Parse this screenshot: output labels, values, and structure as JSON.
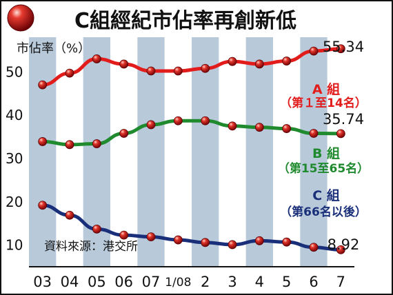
{
  "chart_data": {
    "type": "line",
    "title": "C組經紀市佔率再創新低",
    "ylabel": "市佔率（%）",
    "xlabel": "",
    "categories": [
      "03",
      "04",
      "05",
      "06",
      "07",
      "1/08",
      "2",
      "3",
      "4",
      "5",
      "6",
      "7"
    ],
    "ylim": [
      5,
      58
    ],
    "yticks": [
      10,
      20,
      30,
      40,
      50
    ],
    "grid": false,
    "series": [
      {
        "name": "A 組",
        "range_label": "（第１至14名）",
        "color": "#e21b1b",
        "values": [
          47.0,
          49.7,
          53.0,
          51.8,
          50.2,
          50.2,
          50.8,
          52.4,
          51.8,
          52.5,
          54.8,
          55.34
        ],
        "end_label": "55.34"
      },
      {
        "name": "B 組",
        "range_label": "（第15至65名）",
        "color": "#1f8a2e",
        "values": [
          33.9,
          33.2,
          33.4,
          35.8,
          37.8,
          38.7,
          38.7,
          37.5,
          37.2,
          36.9,
          35.8,
          35.74
        ],
        "end_label": "35.74"
      },
      {
        "name": "C 組",
        "range_label": "（第66名以後）",
        "color": "#1a2f7a",
        "values": [
          19.2,
          16.9,
          13.7,
          12.3,
          11.9,
          11.2,
          10.6,
          10.1,
          11.0,
          10.7,
          9.5,
          8.92
        ],
        "end_label": "8.92"
      }
    ],
    "source": "資料來源：港交所",
    "legend_placement": "right"
  },
  "colors": {
    "stripe": "#b8c9da",
    "plot_bg": "#ffffff",
    "marker": "#c0121a"
  }
}
